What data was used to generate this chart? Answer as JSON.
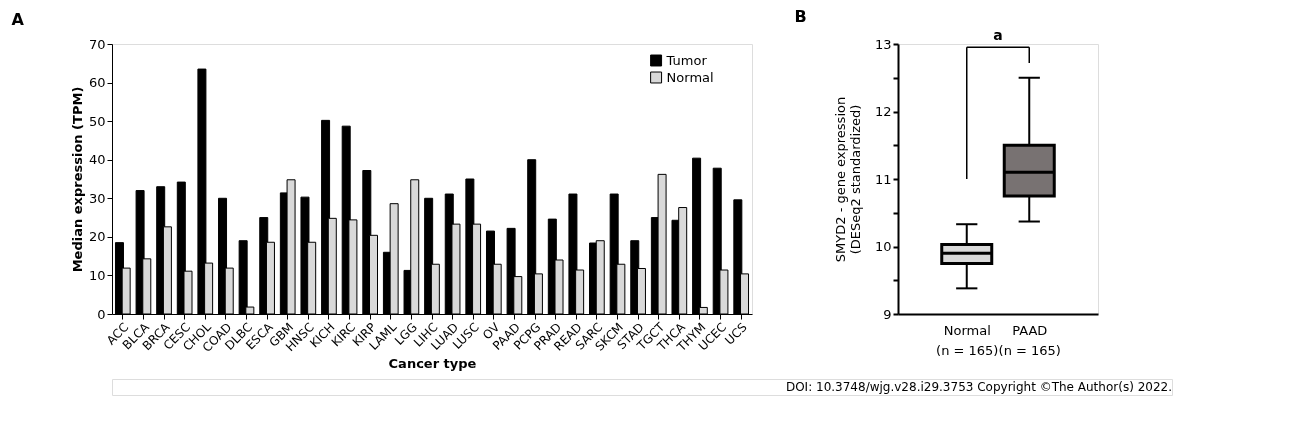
{
  "chart_data": [
    {
      "type": "bar",
      "title": "A",
      "xlabel": "Cancer type",
      "ylabel": "Median expression (TPM)",
      "categories": [
        "ACC",
        "BLCA",
        "BRCA",
        "CESC",
        "CHOL",
        "COAD",
        "DLBC",
        "ESCA",
        "GBM",
        "HNSC",
        "KICH",
        "KIRC",
        "KIRP",
        "LAML",
        "LGG",
        "LIHC",
        "LUAD",
        "LUSC",
        "OV",
        "PAAD",
        "PCPG",
        "PRAD",
        "READ",
        "SARC",
        "SKCM",
        "STAD",
        "TGCT",
        "THCA",
        "THYM",
        "UCEC",
        "UCS"
      ],
      "series": [
        {
          "name": "Tumor",
          "color": "#000000",
          "values": [
            18.5,
            32,
            33,
            34.2,
            63.5,
            30,
            19,
            25,
            31.4,
            30.3,
            50.2,
            48.7,
            37.2,
            16,
            11.3,
            30,
            31.1,
            35,
            21.5,
            22.2,
            40,
            24.6,
            31.1,
            18.4,
            31.1,
            19,
            25,
            24.3,
            40.4,
            37.8,
            29.6
          ]
        },
        {
          "name": "Normal",
          "color": "#d9d9d9",
          "values": [
            11.9,
            14.3,
            22.6,
            11.1,
            13.2,
            11.9,
            1.8,
            18.6,
            34.8,
            18.6,
            24.8,
            24.4,
            20.4,
            28.6,
            34.8,
            12.9,
            23.3,
            23.3,
            12.9,
            9.7,
            10.4,
            14,
            11.4,
            19,
            12.9,
            11.8,
            36.2,
            27.6,
            1.7,
            11.4,
            10.4
          ]
        }
      ],
      "ylim": [
        0,
        70
      ],
      "yticks": [
        0,
        10,
        20,
        30,
        40,
        50,
        60,
        70
      ],
      "legend": "top right",
      "grid": false
    },
    {
      "type": "box",
      "title": "B",
      "ylabel": "SMYD2 - gene expression\n(DESeq2 standardized)",
      "categories": [
        "Normal (n = 165)",
        "PAAD (n = 165)"
      ],
      "colors": [
        "#d9d9d9",
        "#787272"
      ],
      "boxes": [
        {
          "low": 9.38,
          "q1": 9.75,
          "median": 9.9,
          "q3": 10.03,
          "high": 10.33
        },
        {
          "low": 10.37,
          "q1": 10.75,
          "median": 11.1,
          "q3": 11.5,
          "high": 12.5
        }
      ],
      "ylim": [
        9,
        13
      ],
      "yticks": [
        9,
        {
          "value": 9.5,
          "label": null
        },
        10,
        {
          "value": 10.5,
          "label": null
        },
        11,
        {
          "value": 11.5,
          "label": null
        },
        12,
        {
          "value": 12.5,
          "label": null
        },
        13
      ],
      "annotations": [
        "a",
        "DOI: 10.3748/wjg.v28.i29.3753 Copyright ©The Author(s) 2022."
      ]
    }
  ]
}
